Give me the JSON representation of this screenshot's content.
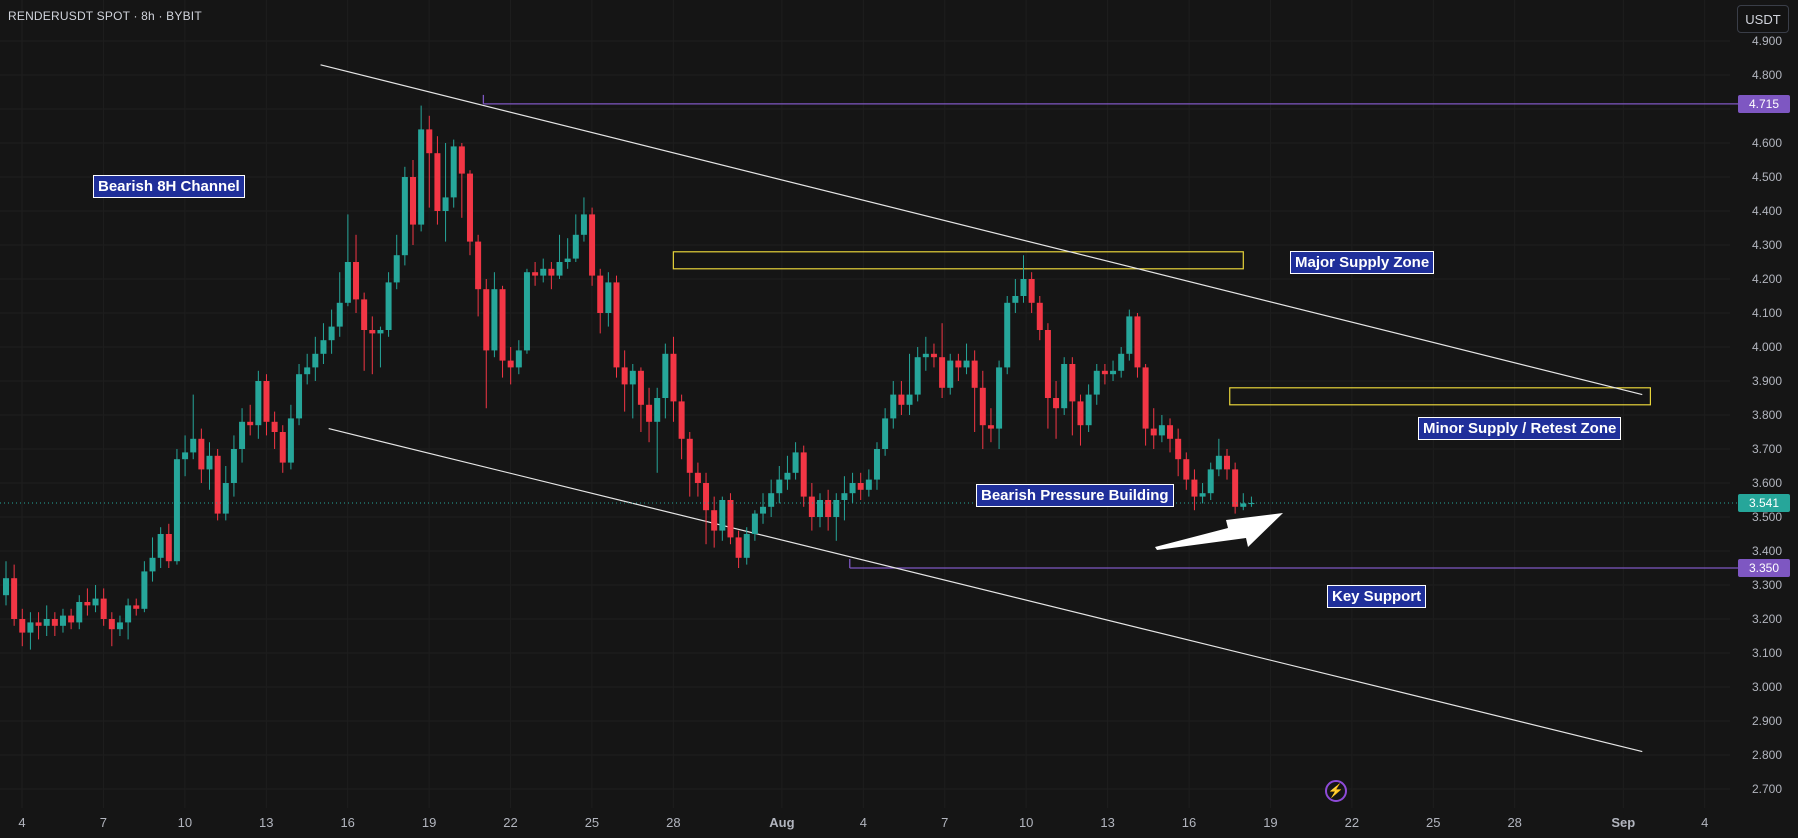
{
  "header": {
    "symbol": "RENDERUSDT SPOT · 8h · BYBIT",
    "currency": "USDT"
  },
  "price_labels": {
    "resistance": "4.715",
    "current": "3.541",
    "support": "3.350"
  },
  "annotations": {
    "channel": "Bearish 8H Channel",
    "major_supply": "Major Supply Zone",
    "minor_supply": "Minor Supply / Retest Zone",
    "pressure": "Bearish Pressure Building",
    "support": "Key Support"
  },
  "icons": {
    "flash": "lightning-icon"
  },
  "colors": {
    "up": "#26a69a",
    "down": "#f23645",
    "level": "#7e57c2",
    "zone": "#e6d33a",
    "current": "#26a69a"
  },
  "chart_data": {
    "type": "candlestick",
    "y_ticks": [
      "4.900",
      "4.800",
      "4.700",
      "4.600",
      "4.500",
      "4.400",
      "4.300",
      "4.200",
      "4.100",
      "4.000",
      "3.900",
      "3.800",
      "3.700",
      "3.600",
      "3.500",
      "3.400",
      "3.300",
      "3.200",
      "3.100",
      "3.000",
      "2.900",
      "2.800",
      "2.700"
    ],
    "x_ticks": [
      {
        "label": "4",
        "day": 4
      },
      {
        "label": "7",
        "day": 7
      },
      {
        "label": "10",
        "day": 10
      },
      {
        "label": "13",
        "day": 13
      },
      {
        "label": "16",
        "day": 16
      },
      {
        "label": "19",
        "day": 19
      },
      {
        "label": "22",
        "day": 22
      },
      {
        "label": "25",
        "day": 25
      },
      {
        "label": "28",
        "day": 28
      },
      {
        "label": "Aug",
        "day": 32,
        "bold": true
      },
      {
        "label": "4",
        "day": 35
      },
      {
        "label": "7",
        "day": 38
      },
      {
        "label": "10",
        "day": 41
      },
      {
        "label": "13",
        "day": 44
      },
      {
        "label": "16",
        "day": 47
      },
      {
        "label": "19",
        "day": 50
      },
      {
        "label": "22",
        "day": 53
      },
      {
        "label": "25",
        "day": 56
      },
      {
        "label": "28",
        "day": 59
      },
      {
        "label": "Sep",
        "day": 63,
        "bold": true
      },
      {
        "label": "4",
        "day": 66
      }
    ],
    "levels": [
      {
        "name": "resistance",
        "price": 4.715,
        "from_day": 21
      },
      {
        "name": "support",
        "price": 3.35,
        "from_day": 34.5
      }
    ],
    "current_price": 3.541,
    "channel_lines": [
      {
        "from": [
          15,
          4.83
        ],
        "to": [
          63.7,
          3.86
        ]
      },
      {
        "from": [
          15.3,
          3.76
        ],
        "to": [
          63.7,
          2.81
        ]
      }
    ],
    "zones": [
      {
        "name": "major_supply",
        "from_day": 28,
        "to_day": 49,
        "top": 4.28,
        "bottom": 4.23
      },
      {
        "name": "minor_supply",
        "from_day": 48.5,
        "to_day": 64,
        "top": 3.88,
        "bottom": 3.83
      }
    ],
    "candles": [
      {
        "o": 3.27,
        "c": 3.32,
        "h": 3.37,
        "l": 3.24
      },
      {
        "o": 3.32,
        "c": 3.2,
        "h": 3.36,
        "l": 3.18
      },
      {
        "o": 3.2,
        "c": 3.16,
        "h": 3.23,
        "l": 3.12
      },
      {
        "o": 3.16,
        "c": 3.19,
        "h": 3.22,
        "l": 3.11
      },
      {
        "o": 3.19,
        "c": 3.18,
        "h": 3.22,
        "l": 3.14
      },
      {
        "o": 3.18,
        "c": 3.2,
        "h": 3.24,
        "l": 3.15
      },
      {
        "o": 3.2,
        "c": 3.18,
        "h": 3.22,
        "l": 3.15
      },
      {
        "o": 3.18,
        "c": 3.21,
        "h": 3.23,
        "l": 3.16
      },
      {
        "o": 3.21,
        "c": 3.19,
        "h": 3.23,
        "l": 3.17
      },
      {
        "o": 3.19,
        "c": 3.25,
        "h": 3.27,
        "l": 3.17
      },
      {
        "o": 3.25,
        "c": 3.24,
        "h": 3.29,
        "l": 3.21
      },
      {
        "o": 3.24,
        "c": 3.26,
        "h": 3.3,
        "l": 3.22
      },
      {
        "o": 3.26,
        "c": 3.2,
        "h": 3.29,
        "l": 3.18
      },
      {
        "o": 3.2,
        "c": 3.17,
        "h": 3.22,
        "l": 3.12
      },
      {
        "o": 3.17,
        "c": 3.19,
        "h": 3.21,
        "l": 3.15
      },
      {
        "o": 3.19,
        "c": 3.24,
        "h": 3.26,
        "l": 3.14
      },
      {
        "o": 3.24,
        "c": 3.23,
        "h": 3.26,
        "l": 3.21
      },
      {
        "o": 3.23,
        "c": 3.34,
        "h": 3.37,
        "l": 3.22
      },
      {
        "o": 3.34,
        "c": 3.38,
        "h": 3.44,
        "l": 3.31
      },
      {
        "o": 3.38,
        "c": 3.45,
        "h": 3.47,
        "l": 3.35
      },
      {
        "o": 3.45,
        "c": 3.37,
        "h": 3.48,
        "l": 3.35
      },
      {
        "o": 3.37,
        "c": 3.67,
        "h": 3.7,
        "l": 3.36
      },
      {
        "o": 3.67,
        "c": 3.69,
        "h": 3.74,
        "l": 3.62
      },
      {
        "o": 3.69,
        "c": 3.73,
        "h": 3.86,
        "l": 3.67
      },
      {
        "o": 3.73,
        "c": 3.64,
        "h": 3.76,
        "l": 3.6
      },
      {
        "o": 3.64,
        "c": 3.68,
        "h": 3.72,
        "l": 3.58
      },
      {
        "o": 3.68,
        "c": 3.51,
        "h": 3.7,
        "l": 3.49
      },
      {
        "o": 3.51,
        "c": 3.6,
        "h": 3.65,
        "l": 3.49
      },
      {
        "o": 3.6,
        "c": 3.7,
        "h": 3.74,
        "l": 3.56
      },
      {
        "o": 3.7,
        "c": 3.78,
        "h": 3.82,
        "l": 3.66
      },
      {
        "o": 3.78,
        "c": 3.77,
        "h": 3.83,
        "l": 3.74
      },
      {
        "o": 3.77,
        "c": 3.9,
        "h": 3.93,
        "l": 3.73
      },
      {
        "o": 3.9,
        "c": 3.78,
        "h": 3.92,
        "l": 3.74
      },
      {
        "o": 3.78,
        "c": 3.75,
        "h": 3.81,
        "l": 3.7
      },
      {
        "o": 3.75,
        "c": 3.66,
        "h": 3.77,
        "l": 3.63
      },
      {
        "o": 3.66,
        "c": 3.79,
        "h": 3.83,
        "l": 3.64
      },
      {
        "o": 3.79,
        "c": 3.92,
        "h": 3.95,
        "l": 3.77
      },
      {
        "o": 3.92,
        "c": 3.94,
        "h": 3.98,
        "l": 3.89
      },
      {
        "o": 3.94,
        "c": 3.98,
        "h": 4.03,
        "l": 3.9
      },
      {
        "o": 3.98,
        "c": 4.02,
        "h": 4.07,
        "l": 3.95
      },
      {
        "o": 4.02,
        "c": 4.06,
        "h": 4.11,
        "l": 3.98
      },
      {
        "o": 4.06,
        "c": 4.13,
        "h": 4.22,
        "l": 4.03
      },
      {
        "o": 4.13,
        "c": 4.25,
        "h": 4.39,
        "l": 4.12
      },
      {
        "o": 4.25,
        "c": 4.14,
        "h": 4.33,
        "l": 4.1
      },
      {
        "o": 4.14,
        "c": 4.05,
        "h": 4.16,
        "l": 3.93
      },
      {
        "o": 4.05,
        "c": 4.04,
        "h": 4.09,
        "l": 3.92
      },
      {
        "o": 4.04,
        "c": 4.05,
        "h": 4.06,
        "l": 3.94
      },
      {
        "o": 4.05,
        "c": 4.19,
        "h": 4.22,
        "l": 4.03
      },
      {
        "o": 4.19,
        "c": 4.27,
        "h": 4.33,
        "l": 4.17
      },
      {
        "o": 4.27,
        "c": 4.5,
        "h": 4.53,
        "l": 4.24
      },
      {
        "o": 4.5,
        "c": 4.36,
        "h": 4.55,
        "l": 4.3
      },
      {
        "o": 4.36,
        "c": 4.64,
        "h": 4.71,
        "l": 4.34
      },
      {
        "o": 4.64,
        "c": 4.57,
        "h": 4.68,
        "l": 4.41
      },
      {
        "o": 4.57,
        "c": 4.4,
        "h": 4.62,
        "l": 4.36
      },
      {
        "o": 4.4,
        "c": 4.44,
        "h": 4.6,
        "l": 4.31
      },
      {
        "o": 4.44,
        "c": 4.59,
        "h": 4.61,
        "l": 4.41
      },
      {
        "o": 4.59,
        "c": 4.51,
        "h": 4.6,
        "l": 4.38
      },
      {
        "o": 4.51,
        "c": 4.31,
        "h": 4.52,
        "l": 4.27
      },
      {
        "o": 4.31,
        "c": 4.17,
        "h": 4.33,
        "l": 4.09
      },
      {
        "o": 4.17,
        "c": 3.99,
        "h": 4.2,
        "l": 3.82
      },
      {
        "o": 3.99,
        "c": 4.17,
        "h": 4.22,
        "l": 3.97
      },
      {
        "o": 4.17,
        "c": 3.96,
        "h": 4.18,
        "l": 3.91
      },
      {
        "o": 3.96,
        "c": 3.94,
        "h": 4.0,
        "l": 3.89
      },
      {
        "o": 3.94,
        "c": 3.99,
        "h": 4.02,
        "l": 3.92
      },
      {
        "o": 3.99,
        "c": 4.22,
        "h": 4.23,
        "l": 3.98
      },
      {
        "o": 4.22,
        "c": 4.21,
        "h": 4.25,
        "l": 4.18
      },
      {
        "o": 4.21,
        "c": 4.23,
        "h": 4.26,
        "l": 4.19
      },
      {
        "o": 4.23,
        "c": 4.21,
        "h": 4.25,
        "l": 4.17
      },
      {
        "o": 4.21,
        "c": 4.25,
        "h": 4.33,
        "l": 4.2
      },
      {
        "o": 4.25,
        "c": 4.26,
        "h": 4.32,
        "l": 4.23
      },
      {
        "o": 4.26,
        "c": 4.33,
        "h": 4.39,
        "l": 4.25
      },
      {
        "o": 4.33,
        "c": 4.39,
        "h": 4.44,
        "l": 4.31
      },
      {
        "o": 4.39,
        "c": 4.21,
        "h": 4.41,
        "l": 4.18
      },
      {
        "o": 4.21,
        "c": 4.1,
        "h": 4.23,
        "l": 4.04
      },
      {
        "o": 4.1,
        "c": 4.19,
        "h": 4.22,
        "l": 4.06
      },
      {
        "o": 4.19,
        "c": 3.94,
        "h": 4.21,
        "l": 3.91
      },
      {
        "o": 3.94,
        "c": 3.89,
        "h": 3.99,
        "l": 3.81
      },
      {
        "o": 3.89,
        "c": 3.93,
        "h": 3.95,
        "l": 3.79
      },
      {
        "o": 3.93,
        "c": 3.83,
        "h": 3.94,
        "l": 3.75
      },
      {
        "o": 3.83,
        "c": 3.78,
        "h": 3.88,
        "l": 3.72
      },
      {
        "o": 3.78,
        "c": 3.85,
        "h": 3.88,
        "l": 3.63
      },
      {
        "o": 3.85,
        "c": 3.98,
        "h": 4.01,
        "l": 3.79
      },
      {
        "o": 3.98,
        "c": 3.84,
        "h": 4.03,
        "l": 3.78
      },
      {
        "o": 3.84,
        "c": 3.73,
        "h": 3.86,
        "l": 3.67
      },
      {
        "o": 3.73,
        "c": 3.63,
        "h": 3.75,
        "l": 3.56
      },
      {
        "o": 3.63,
        "c": 3.6,
        "h": 3.66,
        "l": 3.56
      },
      {
        "o": 3.6,
        "c": 3.52,
        "h": 3.63,
        "l": 3.42
      },
      {
        "o": 3.52,
        "c": 3.46,
        "h": 3.56,
        "l": 3.41
      },
      {
        "o": 3.46,
        "c": 3.55,
        "h": 3.56,
        "l": 3.43
      },
      {
        "o": 3.55,
        "c": 3.44,
        "h": 3.57,
        "l": 3.42
      },
      {
        "o": 3.44,
        "c": 3.38,
        "h": 3.46,
        "l": 3.35
      },
      {
        "o": 3.38,
        "c": 3.45,
        "h": 3.47,
        "l": 3.36
      },
      {
        "o": 3.45,
        "c": 3.51,
        "h": 3.52,
        "l": 3.43
      },
      {
        "o": 3.51,
        "c": 3.53,
        "h": 3.57,
        "l": 3.48
      },
      {
        "o": 3.53,
        "c": 3.57,
        "h": 3.61,
        "l": 3.5
      },
      {
        "o": 3.57,
        "c": 3.61,
        "h": 3.65,
        "l": 3.54
      },
      {
        "o": 3.61,
        "c": 3.63,
        "h": 3.68,
        "l": 3.58
      },
      {
        "o": 3.63,
        "c": 3.69,
        "h": 3.72,
        "l": 3.61
      },
      {
        "o": 3.69,
        "c": 3.56,
        "h": 3.71,
        "l": 3.53
      },
      {
        "o": 3.56,
        "c": 3.5,
        "h": 3.6,
        "l": 3.46
      },
      {
        "o": 3.5,
        "c": 3.55,
        "h": 3.57,
        "l": 3.47
      },
      {
        "o": 3.55,
        "c": 3.5,
        "h": 3.58,
        "l": 3.46
      },
      {
        "o": 3.5,
        "c": 3.55,
        "h": 3.57,
        "l": 3.43
      },
      {
        "o": 3.55,
        "c": 3.57,
        "h": 3.62,
        "l": 3.49
      },
      {
        "o": 3.57,
        "c": 3.6,
        "h": 3.63,
        "l": 3.54
      },
      {
        "o": 3.6,
        "c": 3.58,
        "h": 3.63,
        "l": 3.55
      },
      {
        "o": 3.58,
        "c": 3.61,
        "h": 3.64,
        "l": 3.56
      },
      {
        "o": 3.61,
        "c": 3.7,
        "h": 3.72,
        "l": 3.58
      },
      {
        "o": 3.7,
        "c": 3.79,
        "h": 3.82,
        "l": 3.68
      },
      {
        "o": 3.79,
        "c": 3.86,
        "h": 3.9,
        "l": 3.76
      },
      {
        "o": 3.86,
        "c": 3.83,
        "h": 3.9,
        "l": 3.8
      },
      {
        "o": 3.83,
        "c": 3.86,
        "h": 3.98,
        "l": 3.8
      },
      {
        "o": 3.86,
        "c": 3.97,
        "h": 4.0,
        "l": 3.84
      },
      {
        "o": 3.97,
        "c": 3.98,
        "h": 4.03,
        "l": 3.93
      },
      {
        "o": 3.98,
        "c": 3.97,
        "h": 4.01,
        "l": 3.94
      },
      {
        "o": 3.97,
        "c": 3.88,
        "h": 4.07,
        "l": 3.85
      },
      {
        "o": 3.88,
        "c": 3.96,
        "h": 3.98,
        "l": 3.86
      },
      {
        "o": 3.96,
        "c": 3.94,
        "h": 3.98,
        "l": 3.9
      },
      {
        "o": 3.94,
        "c": 3.96,
        "h": 4.01,
        "l": 3.92
      },
      {
        "o": 3.96,
        "c": 3.88,
        "h": 3.99,
        "l": 3.75
      },
      {
        "o": 3.88,
        "c": 3.77,
        "h": 3.93,
        "l": 3.7
      },
      {
        "o": 3.77,
        "c": 3.76,
        "h": 3.82,
        "l": 3.72
      },
      {
        "o": 3.76,
        "c": 3.94,
        "h": 3.96,
        "l": 3.7
      },
      {
        "o": 3.94,
        "c": 4.13,
        "h": 4.15,
        "l": 3.92
      },
      {
        "o": 4.13,
        "c": 4.15,
        "h": 4.2,
        "l": 4.1
      },
      {
        "o": 4.15,
        "c": 4.2,
        "h": 4.27,
        "l": 4.13
      },
      {
        "o": 4.2,
        "c": 4.13,
        "h": 4.22,
        "l": 4.1
      },
      {
        "o": 4.13,
        "c": 4.05,
        "h": 4.15,
        "l": 4.02
      },
      {
        "o": 4.05,
        "c": 3.85,
        "h": 4.07,
        "l": 3.76
      },
      {
        "o": 3.85,
        "c": 3.82,
        "h": 3.9,
        "l": 3.73
      },
      {
        "o": 3.82,
        "c": 3.95,
        "h": 3.97,
        "l": 3.8
      },
      {
        "o": 3.95,
        "c": 3.84,
        "h": 3.97,
        "l": 3.74
      },
      {
        "o": 3.84,
        "c": 3.77,
        "h": 3.86,
        "l": 3.71
      },
      {
        "o": 3.77,
        "c": 3.86,
        "h": 3.89,
        "l": 3.75
      },
      {
        "o": 3.86,
        "c": 3.93,
        "h": 3.95,
        "l": 3.83
      },
      {
        "o": 3.93,
        "c": 3.92,
        "h": 3.95,
        "l": 3.89
      },
      {
        "o": 3.92,
        "c": 3.93,
        "h": 3.96,
        "l": 3.9
      },
      {
        "o": 3.93,
        "c": 3.98,
        "h": 4.0,
        "l": 3.91
      },
      {
        "o": 3.98,
        "c": 4.09,
        "h": 4.11,
        "l": 3.96
      },
      {
        "o": 4.09,
        "c": 3.94,
        "h": 4.1,
        "l": 3.91
      },
      {
        "o": 3.94,
        "c": 3.76,
        "h": 3.95,
        "l": 3.71
      },
      {
        "o": 3.76,
        "c": 3.74,
        "h": 3.82,
        "l": 3.7
      },
      {
        "o": 3.74,
        "c": 3.77,
        "h": 3.8,
        "l": 3.72
      },
      {
        "o": 3.77,
        "c": 3.73,
        "h": 3.79,
        "l": 3.69
      },
      {
        "o": 3.73,
        "c": 3.67,
        "h": 3.76,
        "l": 3.62
      },
      {
        "o": 3.67,
        "c": 3.61,
        "h": 3.69,
        "l": 3.58
      },
      {
        "o": 3.61,
        "c": 3.56,
        "h": 3.64,
        "l": 3.52
      },
      {
        "o": 3.56,
        "c": 3.57,
        "h": 3.6,
        "l": 3.54
      },
      {
        "o": 3.57,
        "c": 3.64,
        "h": 3.66,
        "l": 3.55
      },
      {
        "o": 3.64,
        "c": 3.68,
        "h": 3.73,
        "l": 3.62
      },
      {
        "o": 3.68,
        "c": 3.64,
        "h": 3.7,
        "l": 3.61
      },
      {
        "o": 3.64,
        "c": 3.53,
        "h": 3.66,
        "l": 3.51
      },
      {
        "o": 3.53,
        "c": 3.54,
        "h": 3.57,
        "l": 3.52
      },
      {
        "o": 3.54,
        "c": 3.541,
        "h": 3.56,
        "l": 3.53
      }
    ]
  }
}
